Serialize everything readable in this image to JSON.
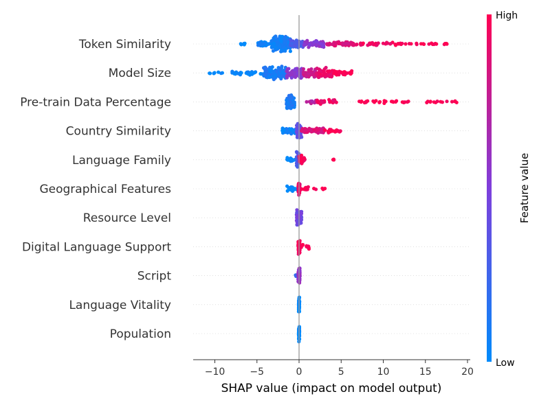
{
  "chart_data": {
    "type": "scatter",
    "subtype": "shap-beeswarm",
    "xlabel": "SHAP value (impact on model output)",
    "xlim": [
      -12.5,
      20.2
    ],
    "xticks": [
      -10,
      -5,
      0,
      5,
      10,
      15,
      20
    ],
    "xtick_labels": [
      "−10",
      "−5",
      "0",
      "5",
      "10",
      "15",
      "20"
    ],
    "colorbar": {
      "title": "Feature value",
      "high_label": "High",
      "low_label": "Low",
      "low_color": "#008bfb",
      "mid_color": "#7e3fdc",
      "high_color": "#ff0052"
    },
    "zero_line": true,
    "features": [
      {
        "name": "Token Similarity",
        "clusters": [
          {
            "min": -7.0,
            "max": -6.3,
            "n": 6,
            "width": 0.15,
            "color": 0.0
          },
          {
            "min": -5.0,
            "max": -3.5,
            "n": 40,
            "width": 0.35,
            "color": 0.05
          },
          {
            "min": -3.3,
            "max": -1.0,
            "n": 160,
            "width": 1.0,
            "color": 0.08
          },
          {
            "min": -1.0,
            "max": 0.5,
            "n": 60,
            "width": 0.55,
            "color": 0.3
          },
          {
            "min": 0.5,
            "max": 3.0,
            "n": 60,
            "width": 0.45,
            "color": 0.55
          },
          {
            "min": 3.0,
            "max": 6.5,
            "n": 50,
            "width": 0.3,
            "color": 0.85
          },
          {
            "min": 6.5,
            "max": 12.5,
            "n": 40,
            "width": 0.2,
            "color": 0.95
          },
          {
            "min": 12.5,
            "max": 17.7,
            "n": 18,
            "width": 0.1,
            "color": 1.0
          }
        ]
      },
      {
        "name": "Model Size",
        "clusters": [
          {
            "min": -11.2,
            "max": -9.0,
            "n": 8,
            "width": 0.15,
            "color": 0.0
          },
          {
            "min": -8.0,
            "max": -4.2,
            "n": 30,
            "width": 0.3,
            "color": 0.02
          },
          {
            "min": -4.2,
            "max": -1.5,
            "n": 130,
            "width": 0.85,
            "color": 0.1
          },
          {
            "min": -1.5,
            "max": 0.5,
            "n": 70,
            "width": 0.8,
            "color": 0.55
          },
          {
            "min": 0.5,
            "max": 2.0,
            "n": 40,
            "width": 0.6,
            "color": 0.8
          },
          {
            "min": 2.0,
            "max": 4.0,
            "n": 50,
            "width": 0.75,
            "color": 0.92
          },
          {
            "min": 4.0,
            "max": 6.5,
            "n": 30,
            "width": 0.3,
            "color": 1.0
          }
        ]
      },
      {
        "name": "Pre-train Data Percentage",
        "clusters": [
          {
            "min": -1.5,
            "max": -0.5,
            "n": 70,
            "width": 1.0,
            "color": 0.1
          },
          {
            "min": 0.8,
            "max": 2.0,
            "n": 10,
            "width": 0.2,
            "color": 0.7
          },
          {
            "min": 2.0,
            "max": 4.5,
            "n": 25,
            "width": 0.3,
            "color": 0.92
          },
          {
            "min": 7.0,
            "max": 13.0,
            "n": 28,
            "width": 0.2,
            "color": 1.0
          },
          {
            "min": 14.8,
            "max": 18.8,
            "n": 14,
            "width": 0.15,
            "color": 1.0
          }
        ]
      },
      {
        "name": "Country Similarity",
        "clusters": [
          {
            "min": -2.0,
            "max": -0.3,
            "n": 50,
            "width": 0.45,
            "color": 0.05
          },
          {
            "min": -0.3,
            "max": 0.3,
            "n": 60,
            "width": 1.0,
            "color": 0.4
          },
          {
            "min": 0.3,
            "max": 3.0,
            "n": 55,
            "width": 0.4,
            "color": 0.85
          },
          {
            "min": 3.0,
            "max": 5.0,
            "n": 22,
            "width": 0.25,
            "color": 1.0
          }
        ]
      },
      {
        "name": "Language Family",
        "clusters": [
          {
            "min": -1.5,
            "max": -0.3,
            "n": 15,
            "width": 0.3,
            "color": 0.0
          },
          {
            "min": -0.3,
            "max": 0.0,
            "n": 40,
            "width": 1.0,
            "color": 0.3
          },
          {
            "min": 0.0,
            "max": 0.7,
            "n": 30,
            "width": 0.55,
            "color": 0.95
          },
          {
            "min": 3.9,
            "max": 4.2,
            "n": 3,
            "width": 0.1,
            "color": 1.0
          }
        ]
      },
      {
        "name": "Geographical Features",
        "clusters": [
          {
            "min": -1.5,
            "max": -0.1,
            "n": 22,
            "width": 0.35,
            "color": 0.0
          },
          {
            "min": -0.1,
            "max": 0.1,
            "n": 60,
            "width": 1.0,
            "color": 0.9
          },
          {
            "min": 0.1,
            "max": 1.3,
            "n": 10,
            "width": 0.25,
            "color": 1.0
          },
          {
            "min": 1.7,
            "max": 3.5,
            "n": 5,
            "width": 0.1,
            "color": 1.0
          }
        ]
      },
      {
        "name": "Resource Level",
        "clusters": [
          {
            "min": -0.3,
            "max": 0.3,
            "n": 70,
            "width": 1.0,
            "color": 0.45
          }
        ]
      },
      {
        "name": "Digital Language Support",
        "clusters": [
          {
            "min": -0.1,
            "max": 0.1,
            "n": 70,
            "width": 1.0,
            "color": 0.95
          },
          {
            "min": 0.1,
            "max": 1.2,
            "n": 12,
            "width": 0.3,
            "color": 1.0
          }
        ]
      },
      {
        "name": "Script",
        "clusters": [
          {
            "min": -0.5,
            "max": -0.2,
            "n": 5,
            "width": 0.2,
            "color": 0.2
          },
          {
            "min": -0.1,
            "max": 0.1,
            "n": 60,
            "width": 1.0,
            "color": 0.6
          }
        ]
      },
      {
        "name": "Language Vitality",
        "clusters": [
          {
            "min": -0.05,
            "max": 0.05,
            "n": 60,
            "width": 1.0,
            "color": 0.0
          }
        ]
      },
      {
        "name": "Population",
        "clusters": [
          {
            "min": -0.05,
            "max": 0.05,
            "n": 60,
            "width": 1.0,
            "color": 0.0
          }
        ]
      }
    ]
  }
}
